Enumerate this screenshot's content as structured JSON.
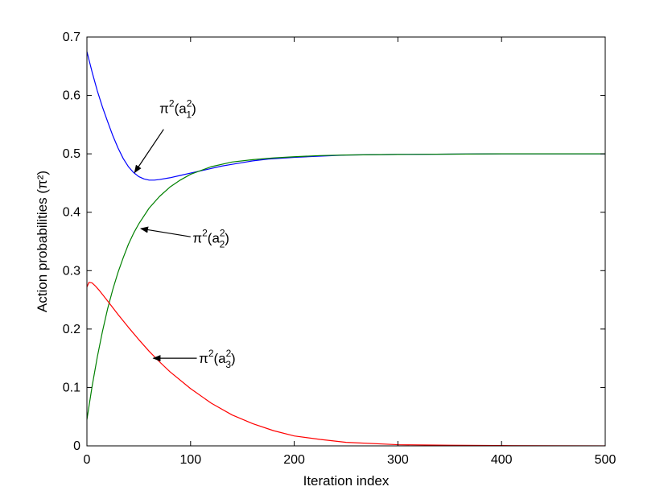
{
  "chart_data": {
    "type": "line",
    "title": "",
    "xlabel": "Iteration index",
    "ylabel": "Action probabilities (π²)",
    "xlim": [
      0,
      500
    ],
    "ylim": [
      0,
      0.7
    ],
    "xticks": [
      0,
      100,
      200,
      300,
      400,
      500
    ],
    "xtick_labels": [
      "0",
      "100",
      "200",
      "300",
      "400",
      "500"
    ],
    "yticks": [
      0,
      0.1,
      0.2,
      0.3,
      0.4,
      0.5,
      0.6,
      0.7
    ],
    "ytick_labels": [
      "0",
      "0.1",
      "0.2",
      "0.3",
      "0.4",
      "0.5",
      "0.6",
      "0.7"
    ],
    "grid": false,
    "legend": "none",
    "series": [
      {
        "color": "#0000ff",
        "x": [
          0,
          5,
          10,
          15,
          20,
          25,
          30,
          35,
          40,
          45,
          50,
          55,
          60,
          65,
          70,
          80,
          90,
          100,
          110,
          120,
          130,
          140,
          150,
          160,
          175,
          200,
          225,
          250,
          300,
          350,
          400,
          450,
          500
        ],
        "y": [
          0.675,
          0.64,
          0.608,
          0.58,
          0.555,
          0.531,
          0.51,
          0.492,
          0.478,
          0.468,
          0.461,
          0.457,
          0.455,
          0.455,
          0.456,
          0.459,
          0.463,
          0.467,
          0.471,
          0.475,
          0.479,
          0.482,
          0.485,
          0.488,
          0.491,
          0.494,
          0.496,
          0.498,
          0.499,
          0.4995,
          0.5,
          0.5,
          0.5
        ]
      },
      {
        "color": "#008000",
        "x": [
          0,
          5,
          10,
          15,
          20,
          25,
          30,
          35,
          40,
          45,
          50,
          60,
          70,
          80,
          90,
          100,
          120,
          140,
          160,
          180,
          200,
          225,
          250,
          300,
          350,
          400,
          450,
          500
        ],
        "y": [
          0.045,
          0.102,
          0.152,
          0.196,
          0.235,
          0.268,
          0.297,
          0.322,
          0.345,
          0.364,
          0.38,
          0.407,
          0.427,
          0.443,
          0.455,
          0.465,
          0.478,
          0.486,
          0.49,
          0.493,
          0.495,
          0.497,
          0.498,
          0.499,
          0.4995,
          0.5,
          0.5,
          0.5
        ]
      },
      {
        "color": "#ff0000",
        "x": [
          0,
          2,
          5,
          8,
          12,
          20,
          30,
          40,
          50,
          60,
          70,
          80,
          100,
          120,
          140,
          160,
          180,
          200,
          225,
          250,
          300,
          350,
          400,
          450,
          500
        ],
        "y": [
          0.272,
          0.28,
          0.279,
          0.274,
          0.266,
          0.248,
          0.225,
          0.203,
          0.182,
          0.162,
          0.144,
          0.127,
          0.098,
          0.073,
          0.053,
          0.038,
          0.026,
          0.017,
          0.011,
          0.006,
          0.002,
          0.001,
          0.0005,
          0.0002,
          0.0001
        ]
      }
    ],
    "annotations": [
      {
        "label": "π",
        "sup": "2",
        "arg": "(a",
        "arg_sup": "2",
        "arg_sub": "1",
        "close": ")",
        "arrow_to": [
          46,
          0.468
        ],
        "text_at": [
          70,
          0.57
        ],
        "arrow_from": [
          74,
          0.542
        ]
      },
      {
        "label": "π",
        "sup": "2",
        "arg": "(a",
        "arg_sup": "2",
        "arg_sub": "2",
        "close": ")",
        "arrow_to": [
          52,
          0.372
        ],
        "text_at": [
          102,
          0.348
        ],
        "arrow_from": [
          100,
          0.358
        ]
      },
      {
        "label": "π",
        "sup": "2",
        "arg": "(a",
        "arg_sup": "2",
        "arg_sub": "3",
        "close": ")",
        "arrow_to": [
          64,
          0.15
        ],
        "text_at": [
          108,
          0.142
        ],
        "arrow_from": [
          106,
          0.15
        ]
      }
    ]
  }
}
